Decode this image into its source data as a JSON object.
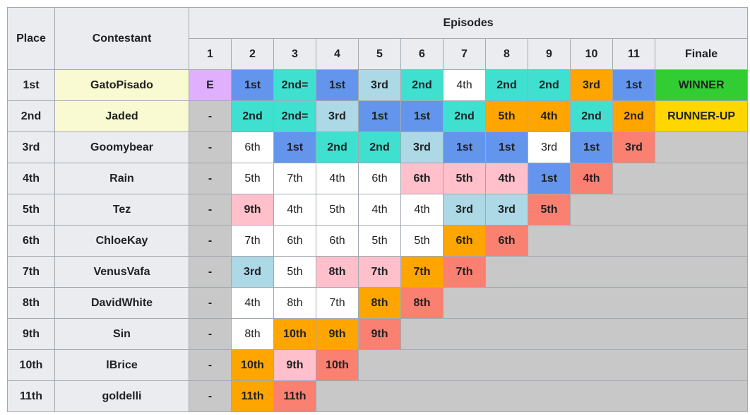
{
  "header": {
    "place": "Place",
    "contestant": "Contestant",
    "episodes": "Episodes",
    "columns": [
      "1",
      "2",
      "3",
      "4",
      "5",
      "6",
      "7",
      "8",
      "9",
      "10",
      "11",
      "Finale"
    ]
  },
  "rows": [
    {
      "place": "1st",
      "contestant": "GatoPisado",
      "highlight": "#fafad2",
      "cells": [
        [
          "E",
          "#e0b0ff"
        ],
        [
          "1st",
          "#6495ed"
        ],
        [
          "2nd=",
          "#40e0d0"
        ],
        [
          "1st",
          "#6495ed"
        ],
        [
          "3rd",
          "#add8e6"
        ],
        [
          "2nd",
          "#40e0d0"
        ],
        [
          "4th",
          "#ffffff"
        ],
        [
          "2nd",
          "#40e0d0"
        ],
        [
          "2nd",
          "#40e0d0"
        ],
        [
          "3rd",
          "#ffa500"
        ],
        [
          "1st",
          "#6495ed"
        ],
        [
          "WINNER",
          "#32cd32"
        ]
      ]
    },
    {
      "place": "2nd",
      "contestant": "Jaded",
      "highlight": "#fafad2",
      "cells": [
        [
          "-",
          "#c8c8c8"
        ],
        [
          "2nd",
          "#40e0d0"
        ],
        [
          "2nd=",
          "#40e0d0"
        ],
        [
          "3rd",
          "#add8e6"
        ],
        [
          "1st",
          "#6495ed"
        ],
        [
          "1st",
          "#6495ed"
        ],
        [
          "2nd",
          "#40e0d0"
        ],
        [
          "5th",
          "#ffa500"
        ],
        [
          "4th",
          "#ffa500"
        ],
        [
          "2nd",
          "#40e0d0"
        ],
        [
          "2nd",
          "#ffa500"
        ],
        [
          "RUNNER-UP",
          "#ffd700"
        ]
      ]
    },
    {
      "place": "3rd",
      "contestant": "Goomybear",
      "cells": [
        [
          "-",
          "#c8c8c8"
        ],
        [
          "6th",
          "#ffffff"
        ],
        [
          "1st",
          "#6495ed"
        ],
        [
          "2nd",
          "#40e0d0"
        ],
        [
          "2nd",
          "#40e0d0"
        ],
        [
          "3rd",
          "#add8e6"
        ],
        [
          "1st",
          "#6495ed"
        ],
        [
          "1st",
          "#6495ed"
        ],
        [
          "3rd",
          "#ffffff"
        ],
        [
          "1st",
          "#6495ed"
        ],
        [
          "3rd",
          "#fa8072"
        ]
      ]
    },
    {
      "place": "4th",
      "contestant": "Rain",
      "cells": [
        [
          "-",
          "#c8c8c8"
        ],
        [
          "5th",
          "#ffffff"
        ],
        [
          "7th",
          "#ffffff"
        ],
        [
          "4th",
          "#ffffff"
        ],
        [
          "6th",
          "#ffffff"
        ],
        [
          "6th",
          "#ffc0cb"
        ],
        [
          "5th",
          "#ffc0cb"
        ],
        [
          "4th",
          "#ffc0cb"
        ],
        [
          "1st",
          "#6495ed"
        ],
        [
          "4th",
          "#fa8072"
        ]
      ]
    },
    {
      "place": "5th",
      "contestant": "Tez",
      "cells": [
        [
          "-",
          "#c8c8c8"
        ],
        [
          "9th",
          "#ffc0cb"
        ],
        [
          "4th",
          "#ffffff"
        ],
        [
          "5th",
          "#ffffff"
        ],
        [
          "4th",
          "#ffffff"
        ],
        [
          "4th",
          "#ffffff"
        ],
        [
          "3rd",
          "#add8e6"
        ],
        [
          "3rd",
          "#add8e6"
        ],
        [
          "5th",
          "#fa8072"
        ]
      ]
    },
    {
      "place": "6th",
      "contestant": "ChloeKay",
      "cells": [
        [
          "-",
          "#c8c8c8"
        ],
        [
          "7th",
          "#ffffff"
        ],
        [
          "6th",
          "#ffffff"
        ],
        [
          "6th",
          "#ffffff"
        ],
        [
          "5th",
          "#ffffff"
        ],
        [
          "5th",
          "#ffffff"
        ],
        [
          "6th",
          "#ffa500"
        ],
        [
          "6th",
          "#fa8072"
        ]
      ]
    },
    {
      "place": "7th",
      "contestant": "VenusVafa",
      "cells": [
        [
          "-",
          "#c8c8c8"
        ],
        [
          "3rd",
          "#add8e6"
        ],
        [
          "5th",
          "#ffffff"
        ],
        [
          "8th",
          "#ffc0cb"
        ],
        [
          "7th",
          "#ffc0cb"
        ],
        [
          "7th",
          "#ffa500"
        ],
        [
          "7th",
          "#fa8072"
        ]
      ]
    },
    {
      "place": "8th",
      "contestant": "DavidWhite",
      "cells": [
        [
          "-",
          "#c8c8c8"
        ],
        [
          "4th",
          "#ffffff"
        ],
        [
          "8th",
          "#ffffff"
        ],
        [
          "7th",
          "#ffffff"
        ],
        [
          "8th",
          "#ffa500"
        ],
        [
          "8th",
          "#fa8072"
        ]
      ]
    },
    {
      "place": "9th",
      "contestant": "Sin",
      "cells": [
        [
          "-",
          "#c8c8c8"
        ],
        [
          "8th",
          "#ffffff"
        ],
        [
          "10th",
          "#ffa500"
        ],
        [
          "9th",
          "#ffa500"
        ],
        [
          "9th",
          "#fa8072"
        ]
      ]
    },
    {
      "place": "10th",
      "contestant": "lBrice",
      "cells": [
        [
          "-",
          "#c8c8c8"
        ],
        [
          "10th",
          "#ffa500"
        ],
        [
          "9th",
          "#ffc0cb"
        ],
        [
          "10th",
          "#fa8072"
        ]
      ]
    },
    {
      "place": "11th",
      "contestant": "goldelli",
      "cells": [
        [
          "-",
          "#c8c8c8"
        ],
        [
          "11th",
          "#ffa500"
        ],
        [
          "11th",
          "#fa8072"
        ]
      ]
    }
  ]
}
